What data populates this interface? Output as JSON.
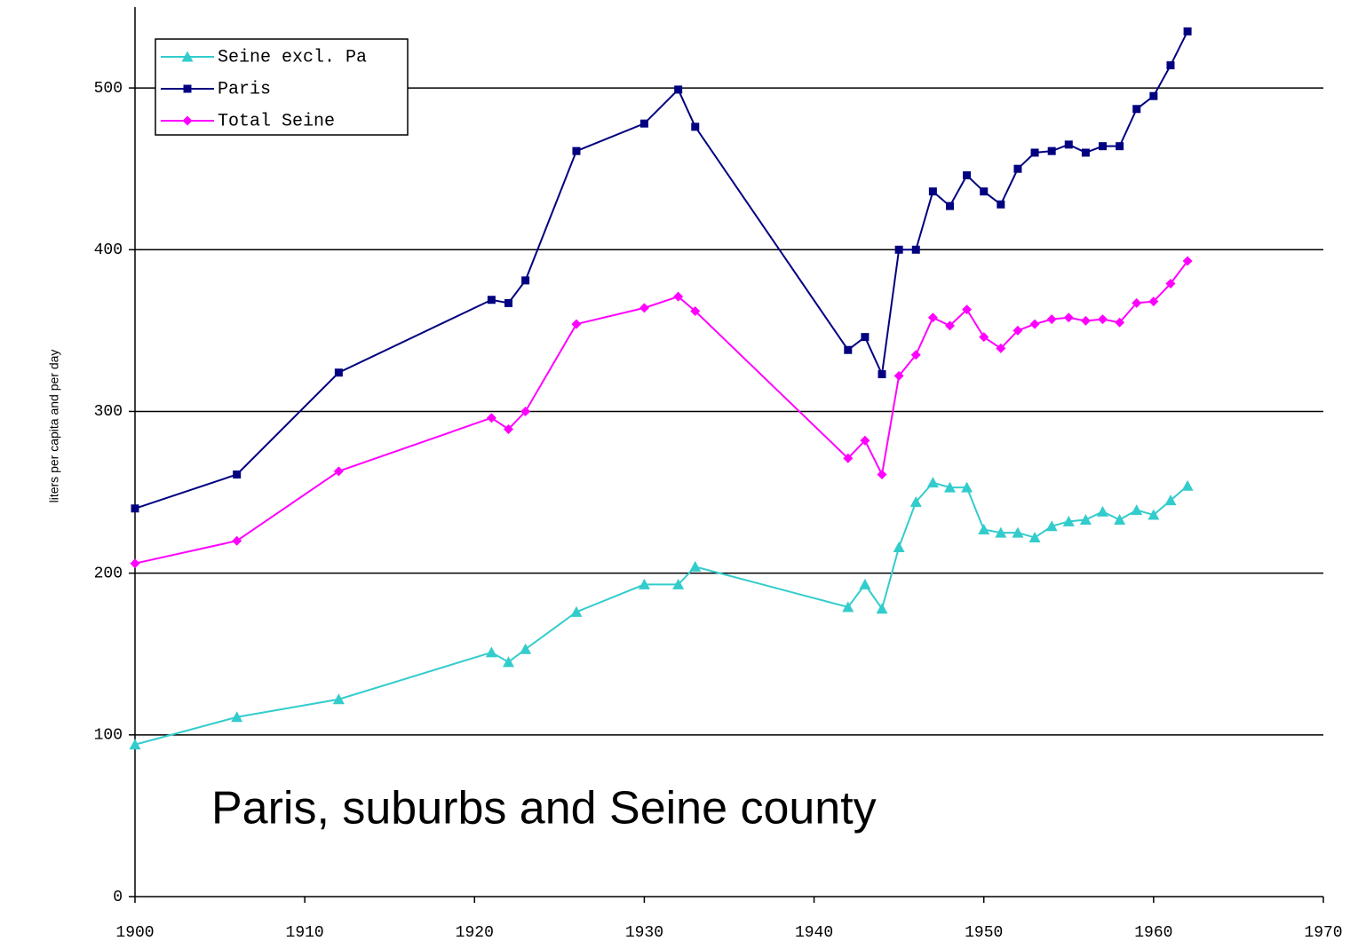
{
  "chart_data": {
    "type": "line",
    "annotation": "Paris, suburbs and Seine county",
    "y_label": "liters per capita and per day",
    "x": [
      1900,
      1906,
      1912,
      1921,
      1922,
      1923,
      1926,
      1930,
      1932,
      1933,
      1942,
      1943,
      1944,
      1945,
      1946,
      1947,
      1948,
      1949,
      1950,
      1951,
      1952,
      1953,
      1954,
      1955,
      1956,
      1957,
      1958,
      1959,
      1960,
      1961,
      1962
    ],
    "series": [
      {
        "name": "Seine excl. Pa",
        "color": "#33cccc",
        "marker": "triangle",
        "values": [
          94,
          111,
          122,
          151,
          145,
          153,
          176,
          193,
          193,
          204,
          179,
          193,
          178,
          216,
          244,
          256,
          253,
          253,
          227,
          225,
          225,
          222,
          229,
          232,
          233,
          238,
          233,
          239,
          236,
          245,
          254
        ]
      },
      {
        "name": "Paris",
        "color": "#000080",
        "marker": "square",
        "values": [
          240,
          261,
          324,
          369,
          367,
          381,
          461,
          478,
          499,
          476,
          338,
          346,
          323,
          400,
          400,
          436,
          427,
          446,
          436,
          428,
          450,
          460,
          461,
          465,
          460,
          464,
          464,
          487,
          495,
          514,
          535
        ]
      },
      {
        "name": "Total Seine",
        "color": "#ff00ff",
        "marker": "diamond",
        "values": [
          206,
          220,
          263,
          296,
          289,
          300,
          354,
          364,
          371,
          362,
          271,
          282,
          261,
          322,
          335,
          358,
          353,
          363,
          346,
          339,
          350,
          354,
          357,
          358,
          356,
          357,
          355,
          367,
          368,
          379,
          393
        ]
      }
    ],
    "xlim": [
      1900,
      1970
    ],
    "xticks": [
      1900,
      1910,
      1920,
      1930,
      1940,
      1950,
      1960,
      1970
    ],
    "ylim": [
      0,
      550
    ],
    "yticks": [
      0,
      100,
      200,
      300,
      400,
      500
    ],
    "grid": true,
    "legend": "upper left"
  }
}
